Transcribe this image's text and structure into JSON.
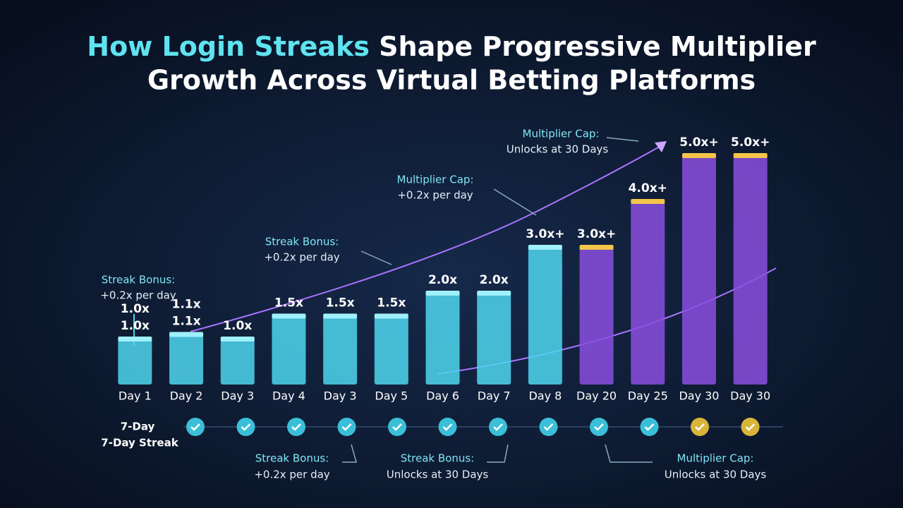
{
  "chart_data": {
    "type": "bar",
    "title": [
      "How Login Streaks",
      "Shape Progressive Multiplier",
      "Growth Across Virtual Betting Platforms"
    ],
    "categories": [
      "Day 1",
      "Day 2",
      "Day 3",
      "Day 4",
      "Day 3",
      "Day 5",
      "Day 6",
      "Day 7",
      "Day 8",
      "Day 20",
      "Day 25",
      "Day 30",
      "Day 30"
    ],
    "values": [
      1.0,
      1.1,
      1.0,
      1.5,
      1.5,
      1.5,
      2.0,
      2.0,
      3.0,
      3.0,
      4.0,
      5.0,
      5.0
    ],
    "value_labels": [
      [
        "1.0x",
        "1.0x"
      ],
      [
        "1.1x",
        "1.1x"
      ],
      [
        "1.0x"
      ],
      [
        "1.5x"
      ],
      [
        "1.5x"
      ],
      [
        "1.5x"
      ],
      [
        "2.0x"
      ],
      [
        "2.0x"
      ],
      [
        "3.0x+"
      ],
      [
        "3.0x+"
      ],
      [
        "4.0x+"
      ],
      [
        "5.0x+"
      ],
      [
        "5.0x+"
      ]
    ],
    "colors": [
      "#4fd6ee",
      "#4fd6ee",
      "#4fd6ee",
      "#4fd6ee",
      "#4fd6ee",
      "#4fd6ee",
      "#4fd6ee",
      "#4fd6ee",
      "#4fd6ee",
      "#8b4fe0",
      "#8b4fe0",
      "#8b4fe0",
      "#8b4fe0"
    ],
    "annotations": [
      [
        "Multiplier Cap:",
        "Unlocks at 30 Days"
      ],
      [
        "Multiplier Cap:",
        "+0.2x per day"
      ],
      [
        "Streak Bonus:",
        "+0.2x per day"
      ],
      [
        "Streak Bonus:",
        "+0.2x per day"
      ],
      [
        "Streak Bonus:",
        "+0.2x per day"
      ],
      [
        "Streak Bonus:",
        "Unlocks at 30 Days"
      ],
      [
        "Multiplier Cap:",
        "Unlocks at 30 Days"
      ]
    ],
    "streak_label": [
      "7-Day",
      "7-Day Streak"
    ]
  }
}
